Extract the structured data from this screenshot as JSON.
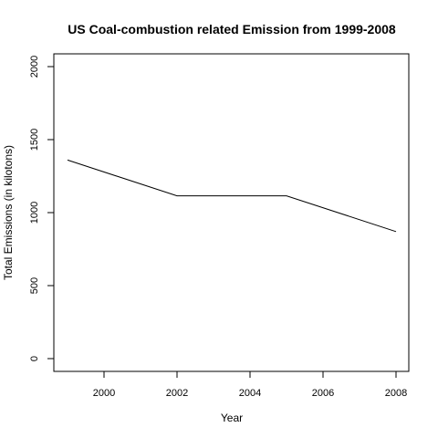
{
  "chart_data": {
    "type": "line",
    "title": "US Coal-combustion related Emission from 1999-2008",
    "xlabel": "Year",
    "ylabel": "Total Emissions (in kilotons)",
    "x": [
      1999,
      2002,
      2005,
      2008
    ],
    "series": [
      {
        "values": [
          1360,
          1115,
          1115,
          870
        ]
      }
    ],
    "xlim": [
      1999,
      2008
    ],
    "ylim": [
      0,
      2000
    ],
    "xticks": [
      2000,
      2002,
      2004,
      2006,
      2008
    ],
    "yticks": [
      0,
      500,
      1000,
      1500,
      2000
    ],
    "grid": false,
    "legend": "none"
  }
}
